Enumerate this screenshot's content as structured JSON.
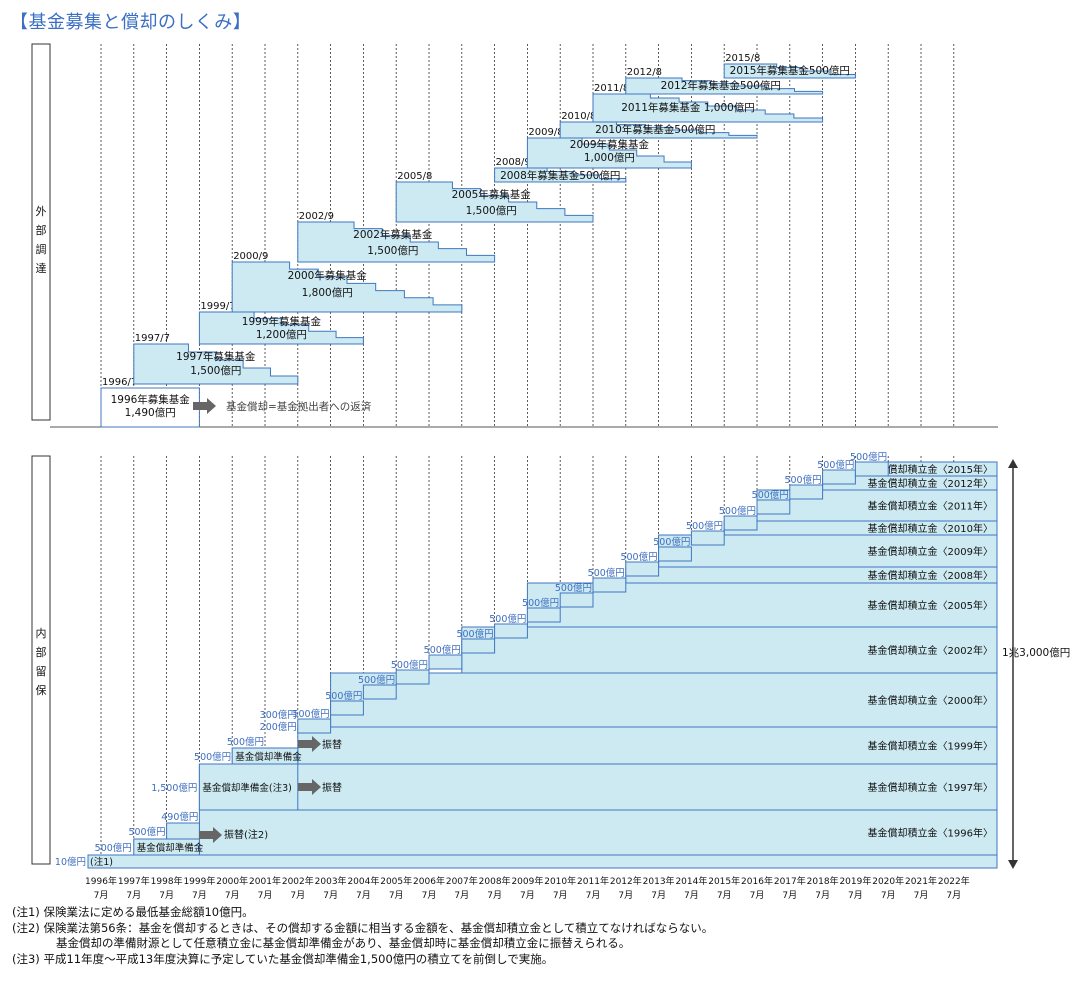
{
  "title": "【基金募集と償却のしくみ】",
  "section_labels": {
    "external": "外部調達",
    "internal": "内部留保"
  },
  "colors": {
    "fill": "#cdeaf2",
    "stroke": "#3f77c0",
    "blue_text": "#3f6fc0",
    "arrow": "#666666"
  },
  "years": [
    "1996年",
    "1997年",
    "1998年",
    "1999年",
    "2000年",
    "2001年",
    "2002年",
    "2003年",
    "2004年",
    "2005年",
    "2006年",
    "2007年",
    "2008年",
    "2009年",
    "2010年",
    "2011年",
    "2012年",
    "2013年",
    "2014年",
    "2015年",
    "2016年",
    "2017年",
    "2018年",
    "2019年",
    "2020年",
    "2021年",
    "2022年"
  ],
  "month_label": "7月",
  "external_funds": [
    {
      "date": "1996/7",
      "label1": "1996年募集基金",
      "label2": "1,490億円",
      "start": 1996,
      "dur": 3
    },
    {
      "date": "1997/7",
      "label1": "1997年募集基金",
      "label2": "1,500億円",
      "start": 1997,
      "dur": 5
    },
    {
      "date": "1999/7",
      "label1": "1999年募集基金",
      "label2": "1,200億円",
      "start": 1999,
      "dur": 5
    },
    {
      "date": "2000/9",
      "label1": "2000年募集基金",
      "label2": "1,800億円",
      "start": 2000,
      "dur": 7
    },
    {
      "date": "2002/9",
      "label1": "2002年募集基金",
      "label2": "1,500億円",
      "start": 2002,
      "dur": 6
    },
    {
      "date": "2005/8",
      "label1": "2005年募集基金",
      "label2": "1,500億円",
      "start": 2005,
      "dur": 6
    },
    {
      "date": "2008/9",
      "label1": "2008年募集基金500億円",
      "label2": "",
      "start": 2008,
      "dur": 4
    },
    {
      "date": "2009/8",
      "label1": "2009年募集基金",
      "label2": "1,000億円",
      "start": 2009,
      "dur": 5
    },
    {
      "date": "2010/8",
      "label1": "2010年募集基金500億円",
      "label2": "",
      "start": 2010,
      "dur": 6
    },
    {
      "date": "2011/8",
      "label1": "2011年募集基金 1,000億円",
      "label2": "",
      "start": 2011,
      "dur": 7
    },
    {
      "date": "2012/8",
      "label1": "2012年募集基金500億円",
      "label2": "",
      "start": 2012,
      "dur": 6
    },
    {
      "date": "2015/8",
      "label1": "2015年募集基金500億円",
      "label2": "",
      "start": 2015,
      "dur": 4
    }
  ],
  "redemption_note": "基金償却=基金拠出者への返済",
  "internal": {
    "total_label": "1兆3,000億円",
    "band_labels": [
      "基金償却積立金〈1996年〉",
      "基金償却積立金〈1997年〉",
      "基金償却積立金〈1999年〉",
      "基金償却積立金〈2000年〉",
      "基金償却積立金〈2002年〉",
      "基金償却積立金〈2005年〉",
      "基金償却積立金〈2008年〉",
      "基金償却積立金〈2009年〉",
      "基金償却積立金〈2010年〉",
      "基金償却積立金〈2011年〉",
      "基金償却積立金〈2012年〉",
      "基金償却積立金〈2015年〉"
    ],
    "step_labels": [
      "500億円",
      "500億円",
      "500億円",
      "500億円",
      "500億円",
      "500億円",
      "500億円",
      "500億円",
      "500億円",
      "500億円",
      "500億円",
      "500億円",
      "500億円",
      "500億円",
      "500億円",
      "500億円",
      "500億円",
      "500億円",
      "500億円"
    ],
    "minimum_label": "10億円",
    "note1_label": "(注1)",
    "step_1997": "500億円",
    "reserve_1997": "基金償却準備金",
    "step_1998": "490億円",
    "step_1999_a": "1,500億円",
    "reserve_1999": "基金償却準備金(注3)",
    "step_2000": "500億円",
    "reserve_2000": "基金償却準備金",
    "step_2001a": "300億円",
    "step_2001b": "200億円",
    "step_2002": "500億円",
    "transfer_note2": "振替(注2)",
    "transfer": "振替"
  },
  "notes": {
    "n1": "(注1) 保険業法に定める最低基金総額10億円。",
    "n2": "(注2) 保険業法第56条：基金を償却するときは、その償却する金額に相当する金額を、基金償却積立金として積立てなければならない。",
    "n2b": "基金償却の準備財源として任意積立金に基金償却準備金があり、基金償却時に基金償却積立金に振替えられる。",
    "n3": "(注3) 平成11年度～平成13年度決算に予定していた基金償却準備金1,500億円の積立てを前倒しで実施。"
  }
}
